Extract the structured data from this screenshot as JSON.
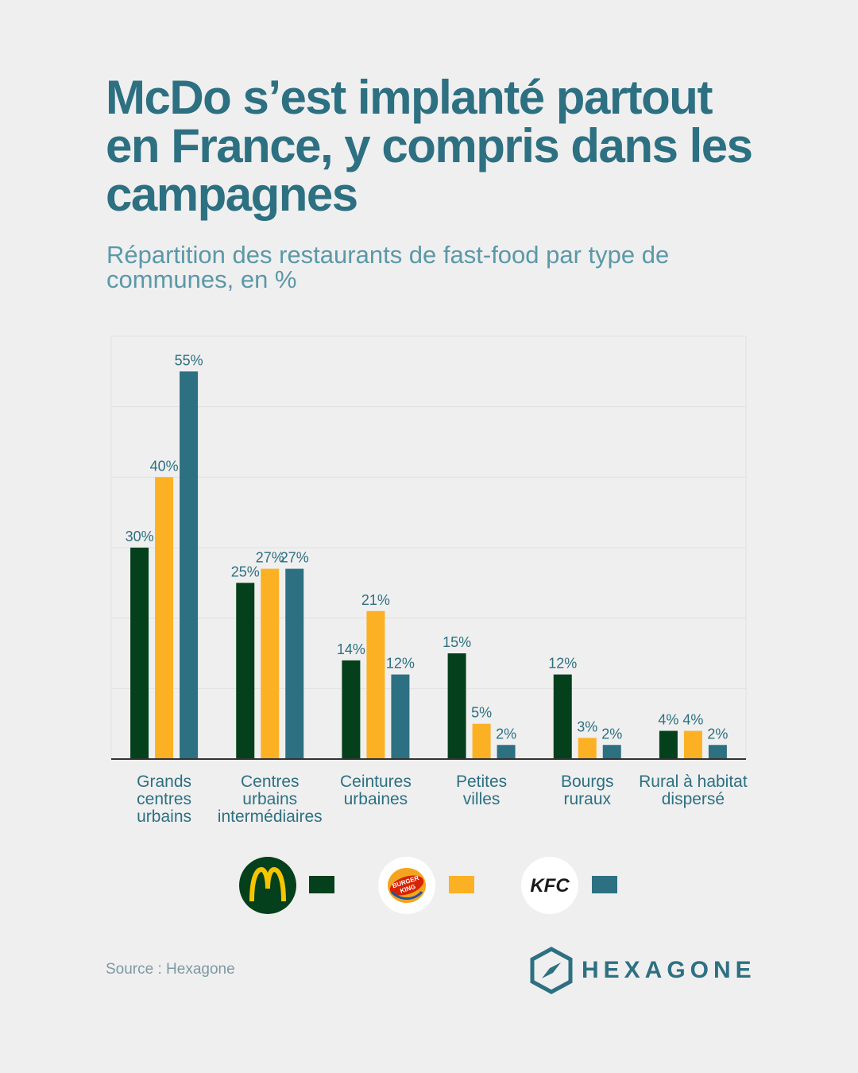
{
  "title": "McDo s’est implanté partout en France, y compris dans les campagnes",
  "subtitle": "Répartition des restaurants de fast-food par type de  communes, en %",
  "source": "Source : Hexagone",
  "brand": "HEXAGONE",
  "colors": {
    "mcdo": "#03401b",
    "bk": "#fbb123",
    "kfc": "#2d7082",
    "accent": "#2d7082"
  },
  "legend": [
    {
      "logo": "mcdonalds-logo",
      "logo_text": "M",
      "color": "#03401b"
    },
    {
      "logo": "burger-king-logo",
      "logo_text": "BURGER KING",
      "color": "#fbb123"
    },
    {
      "logo": "kfc-logo",
      "logo_text": "KFC",
      "color": "#2d7082"
    }
  ],
  "chart_data": {
    "type": "bar",
    "categories": [
      [
        "Grands",
        "centres",
        "urbains"
      ],
      [
        "Centres",
        "urbains",
        "intermédiaires"
      ],
      [
        "Ceintures",
        "urbaines"
      ],
      [
        "Petites",
        "villes"
      ],
      [
        "Bourgs",
        "ruraux"
      ],
      [
        "Rural à habitat",
        "dispersé"
      ]
    ],
    "series": [
      {
        "values": [
          30,
          25,
          14,
          15,
          12,
          4
        ],
        "color": "#03401b"
      },
      {
        "values": [
          40,
          27,
          21,
          5,
          3,
          4
        ],
        "color": "#fbb123"
      },
      {
        "values": [
          55,
          27,
          12,
          2,
          2,
          2
        ],
        "color": "#2d7082"
      }
    ],
    "value_suffix": "%",
    "ylim": [
      0,
      60
    ],
    "grid": true
  }
}
